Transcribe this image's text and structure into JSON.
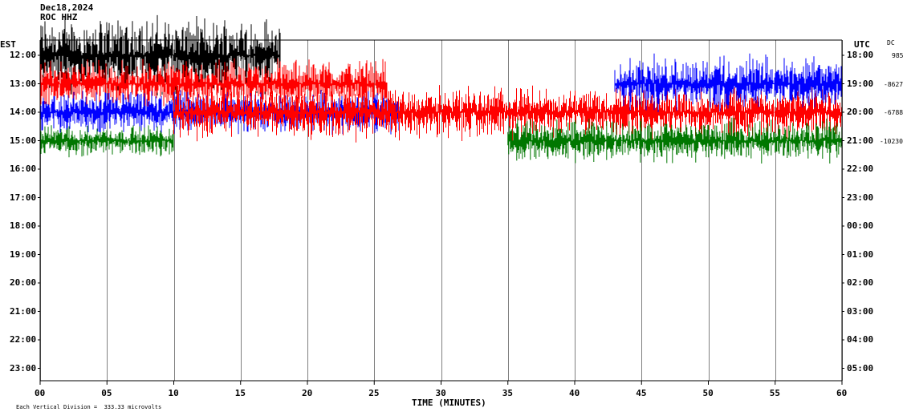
{
  "header": {
    "date": "Dec18,2024",
    "station": "ROC HHZ"
  },
  "chart_data": {
    "type": "line",
    "title": "",
    "xlabel": "TIME (MINUTES)",
    "x_ticks": [
      "00",
      "05",
      "10",
      "15",
      "20",
      "25",
      "30",
      "35",
      "40",
      "45",
      "50",
      "55",
      "60"
    ],
    "xlim": [
      0,
      60
    ],
    "left_axis_title": "EST",
    "left_ticks": [
      "12:00",
      "13:00",
      "14:00",
      "15:00",
      "16:00",
      "17:00",
      "18:00",
      "19:00",
      "20:00",
      "21:00",
      "22:00",
      "23:00"
    ],
    "right_axis_title": "UTC",
    "right_ticks": [
      "18:00",
      "19:00",
      "20:00",
      "21:00",
      "22:00",
      "23:00",
      "00:00",
      "01:00",
      "02:00",
      "03:00",
      "04:00",
      "05:00"
    ],
    "dc_title": "DC",
    "dc_values": [
      "985",
      "-8627",
      "-6788",
      "-10230"
    ],
    "footer_note": "Each Vertical Division =  333.33 microvolts",
    "series": [
      {
        "row": 0,
        "color": "#000000",
        "start_min": 0,
        "end_min": 18,
        "amplitude": 55
      },
      {
        "row": 1,
        "color": "#ff0000",
        "start_min": 0,
        "end_min": 26,
        "amplitude": 35
      },
      {
        "row": 2,
        "color": "#0000ff",
        "start_min": 0,
        "end_min": 27,
        "amplitude": 30
      },
      {
        "row": 3,
        "color": "#007700",
        "start_min": 0,
        "end_min": 10,
        "amplitude": 22
      },
      {
        "row": 2,
        "color": "#ff0000",
        "start_min": 10,
        "end_min": 60,
        "amplitude": 38
      },
      {
        "row": 1,
        "color": "#0000ff",
        "start_min": 43,
        "end_min": 60,
        "amplitude": 40
      },
      {
        "row": 3,
        "color": "#007700",
        "start_min": 35,
        "end_min": 60,
        "amplitude": 30
      }
    ],
    "colors": {
      "background": "#ffffff",
      "grid": "#808080"
    }
  }
}
